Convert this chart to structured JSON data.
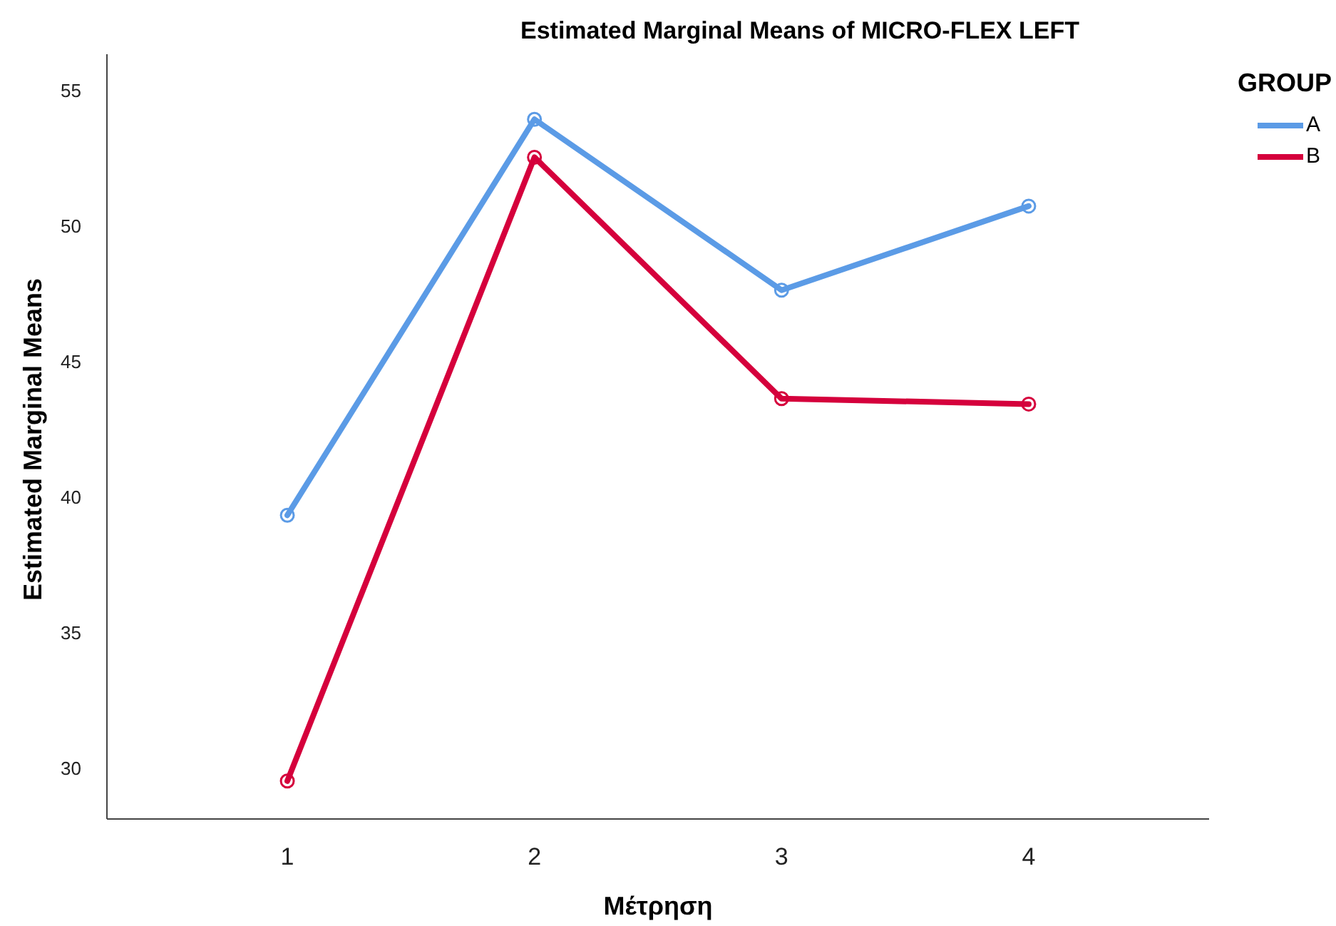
{
  "chart_data": {
    "type": "line",
    "title": "Estimated Marginal Means of MICRO-FLEX LEFT",
    "xlabel": "Μέτρηση",
    "ylabel": "Estimated Marginal Means",
    "legend_title": "GROUP",
    "x": [
      1,
      2,
      3,
      4
    ],
    "series": [
      {
        "name": "A",
        "color": "#5b9be6",
        "values": [
          39.4,
          54.0,
          47.7,
          50.8
        ]
      },
      {
        "name": "B",
        "color": "#d5003c",
        "values": [
          29.6,
          52.6,
          43.7,
          43.5
        ]
      }
    ],
    "xlim": [
      0.27,
      4.73
    ],
    "xticks": [
      1,
      2,
      3,
      4
    ],
    "ylim": [
      28.2,
      56.4
    ],
    "yticks": [
      30,
      35,
      40,
      45,
      50,
      55
    ],
    "grid": false,
    "legend": "top right",
    "marker": "circle",
    "line_style": "solid"
  }
}
